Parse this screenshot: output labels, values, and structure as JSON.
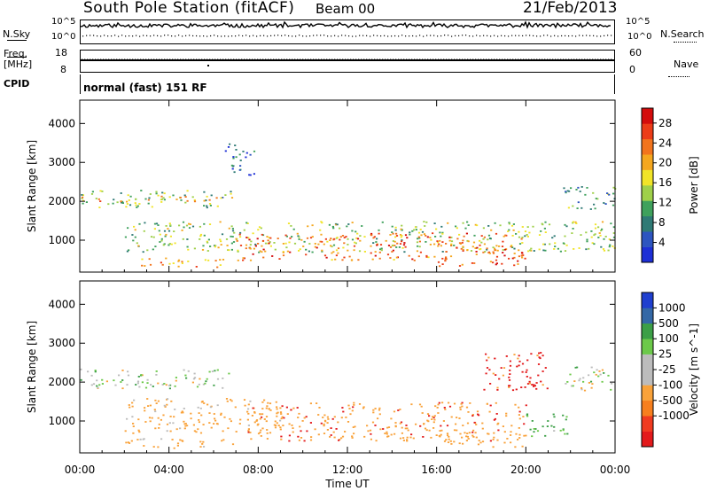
{
  "header": {
    "station": "South Pole Station (fitACF)",
    "beam": "Beam 00",
    "date": "21/Feb/2013"
  },
  "noise_panel": {
    "left_label": "N.Sky",
    "right_label": "N.Search",
    "left_ticks": [
      "10^5",
      "10^0"
    ],
    "right_ticks": [
      "10^5",
      "10^0"
    ]
  },
  "freq_panel": {
    "left_label": "Freq.",
    "left_unit": "[MHz]",
    "left_ticks": [
      "18",
      "8"
    ],
    "right_label": "Nave",
    "right_ticks": [
      "60",
      "0"
    ]
  },
  "cpid": {
    "label": "CPID",
    "value": "normal (fast) 151 RF"
  },
  "colors": {
    "power_scale": [
      "#1d2fd6",
      "#2d55c0",
      "#2f7a75",
      "#3fa15c",
      "#9fd04a",
      "#f1e428",
      "#f5a71f",
      "#f2741d",
      "#ec3c18",
      "#d40c0c"
    ],
    "velocity_scale": [
      "#e31a1c",
      "#f03b20",
      "#f77f1e",
      "#f9a23a",
      "#bcbcbc",
      "#bcbcbc",
      "#6cc94a",
      "#3c9f47",
      "#3468a6",
      "#1f3fcf"
    ],
    "ground_scatter": "#9a9a9a"
  },
  "chart_data": [
    {
      "type": "heatmap",
      "title": "Power",
      "ylabel": "Slant Range [km]",
      "xlabel": "",
      "x_ticks": [
        "00:00",
        "04:00",
        "08:00",
        "12:00",
        "16:00",
        "20:00",
        "00:00"
      ],
      "xlim_hours": [
        0,
        24
      ],
      "y_ticks": [
        1000,
        2000,
        3000,
        4000
      ],
      "ylim": [
        180,
        4600
      ],
      "colorbar": {
        "label": "Power [dB]",
        "ticks": [
          4,
          8,
          12,
          16,
          20,
          24,
          28
        ],
        "range": [
          0,
          31
        ]
      },
      "echo_regions": [
        {
          "x": [
            0.0,
            6.8
          ],
          "y": [
            1850,
            2300
          ],
          "value": 12
        },
        {
          "x": [
            0.0,
            6.8
          ],
          "y": [
            2000,
            2150
          ],
          "value": 20
        },
        {
          "x": [
            6.5,
            7.8
          ],
          "y": [
            2600,
            3500
          ],
          "value": 6
        },
        {
          "x": [
            2.0,
            24.0
          ],
          "y": [
            700,
            1500
          ],
          "value": 14
        },
        {
          "x": [
            7.0,
            20.0
          ],
          "y": [
            500,
            1200
          ],
          "value": 24
        },
        {
          "x": [
            2.0,
            6.5
          ],
          "y": [
            320,
            560
          ],
          "value": 20
        },
        {
          "x": [
            16.0,
            20.0
          ],
          "y": [
            350,
            800
          ],
          "value": 25
        },
        {
          "x": [
            21.5,
            24.0
          ],
          "y": [
            1800,
            2400
          ],
          "value": 10
        }
      ]
    },
    {
      "type": "heatmap",
      "title": "Velocity",
      "ylabel": "Slant Range [km]",
      "xlabel": "Time UT",
      "x_ticks": [
        "00:00",
        "04:00",
        "08:00",
        "12:00",
        "16:00",
        "20:00",
        "00:00"
      ],
      "xlim_hours": [
        0,
        24
      ],
      "y_ticks": [
        1000,
        2000,
        3000,
        4000
      ],
      "ylim": [
        180,
        4600
      ],
      "colorbar": {
        "label": "Velocity [m s^-1]",
        "ticks": [
          1000,
          500,
          100,
          25,
          -25,
          -100,
          -500,
          -1000
        ]
      },
      "echo_regions": [
        {
          "x": [
            0.0,
            6.8
          ],
          "y": [
            1850,
            2350
          ],
          "value": 0
        },
        {
          "x": [
            21.5,
            24.0
          ],
          "y": [
            1800,
            2400
          ],
          "value": 0
        },
        {
          "x": [
            2.0,
            9.0
          ],
          "y": [
            700,
            1600
          ],
          "value": -200
        },
        {
          "x": [
            7.5,
            20.0
          ],
          "y": [
            500,
            1500
          ],
          "value": -400
        },
        {
          "x": [
            2.0,
            7.0
          ],
          "y": [
            320,
            560
          ],
          "value": -150
        },
        {
          "x": [
            16.0,
            20.0
          ],
          "y": [
            350,
            800
          ],
          "value": -300
        },
        {
          "x": [
            18.0,
            21.0
          ],
          "y": [
            1800,
            2800
          ],
          "value": -600
        },
        {
          "x": [
            20.0,
            22.0
          ],
          "y": [
            600,
            1200
          ],
          "value": 150
        }
      ]
    }
  ]
}
